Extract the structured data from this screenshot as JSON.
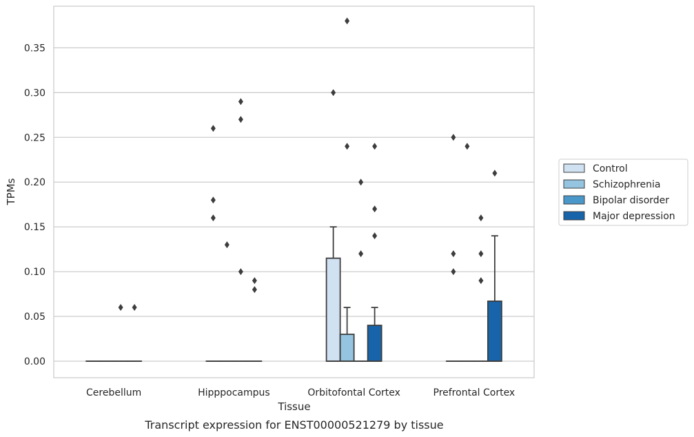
{
  "chart_data": {
    "type": "box",
    "title": "",
    "caption": "Transcript expression for ENST00000521279 by tissue",
    "xlabel": "Tissue",
    "ylabel": "TPMs",
    "ylim": [
      -0.0185,
      0.3965
    ],
    "yticks": [
      0.0,
      0.05,
      0.1,
      0.15,
      0.2,
      0.25,
      0.3,
      0.35
    ],
    "ytick_labels": [
      "0.00",
      "0.05",
      "0.10",
      "0.15",
      "0.20",
      "0.25",
      "0.30",
      "0.35"
    ],
    "grid": "y",
    "legend_position": "right",
    "categories": [
      "Cerebellum",
      "Hipppocampus",
      "Orbitofontal Cortex",
      "Prefrontal Cortex"
    ],
    "series": [
      {
        "name": "Control",
        "color": "#d0e1f2",
        "boxes": [
          {
            "q1": 0.0,
            "median": 0.0,
            "q3": 0.0,
            "whisker_low": 0.0,
            "whisker_high": 0.0,
            "outliers": []
          },
          {
            "q1": 0.0,
            "median": 0.0,
            "q3": 0.0,
            "whisker_low": 0.0,
            "whisker_high": 0.0,
            "outliers": [
              0.26,
              0.18,
              0.16
            ]
          },
          {
            "q1": 0.0,
            "median": 0.0,
            "q3": 0.115,
            "whisker_low": 0.0,
            "whisker_high": 0.15,
            "outliers": [
              0.3
            ]
          },
          {
            "q1": 0.0,
            "median": 0.0,
            "q3": 0.0,
            "whisker_low": 0.0,
            "whisker_high": 0.0,
            "outliers": [
              0.25,
              0.12,
              0.1
            ]
          }
        ]
      },
      {
        "name": "Schizophrenia",
        "color": "#94c4df",
        "boxes": [
          {
            "q1": 0.0,
            "median": 0.0,
            "q3": 0.0,
            "whisker_low": 0.0,
            "whisker_high": 0.0,
            "outliers": []
          },
          {
            "q1": 0.0,
            "median": 0.0,
            "q3": 0.0,
            "whisker_low": 0.0,
            "whisker_high": 0.0,
            "outliers": [
              0.13
            ]
          },
          {
            "q1": 0.0,
            "median": 0.0,
            "q3": 0.03,
            "whisker_low": 0.0,
            "whisker_high": 0.06,
            "outliers": [
              0.38,
              0.24
            ]
          },
          {
            "q1": 0.0,
            "median": 0.0,
            "q3": 0.0,
            "whisker_low": 0.0,
            "whisker_high": 0.0,
            "outliers": [
              0.24
            ]
          }
        ]
      },
      {
        "name": "Bipolar disorder",
        "color": "#4a98c9",
        "boxes": [
          {
            "q1": 0.0,
            "median": 0.0,
            "q3": 0.0,
            "whisker_low": 0.0,
            "whisker_high": 0.0,
            "outliers": [
              0.06
            ]
          },
          {
            "q1": 0.0,
            "median": 0.0,
            "q3": 0.0,
            "whisker_low": 0.0,
            "whisker_high": 0.0,
            "outliers": [
              0.29,
              0.27,
              0.1
            ]
          },
          {
            "q1": 0.0,
            "median": 0.0,
            "q3": 0.0,
            "whisker_low": 0.0,
            "whisker_high": 0.0,
            "outliers": [
              0.2,
              0.12
            ]
          },
          {
            "q1": 0.0,
            "median": 0.0,
            "q3": 0.0,
            "whisker_low": 0.0,
            "whisker_high": 0.0,
            "outliers": [
              0.16,
              0.12,
              0.09
            ]
          }
        ]
      },
      {
        "name": "Major depression",
        "color": "#1764ab",
        "boxes": [
          {
            "q1": 0.0,
            "median": 0.0,
            "q3": 0.0,
            "whisker_low": 0.0,
            "whisker_high": 0.0,
            "outliers": [
              0.06
            ]
          },
          {
            "q1": 0.0,
            "median": 0.0,
            "q3": 0.0,
            "whisker_low": 0.0,
            "whisker_high": 0.0,
            "outliers": [
              0.09,
              0.08
            ]
          },
          {
            "q1": 0.0,
            "median": 0.0,
            "q3": 0.04,
            "whisker_low": 0.0,
            "whisker_high": 0.06,
            "outliers": [
              0.24,
              0.17,
              0.14
            ]
          },
          {
            "q1": 0.0,
            "median": 0.0,
            "q3": 0.067,
            "whisker_low": 0.0,
            "whisker_high": 0.14,
            "outliers": [
              0.21
            ]
          }
        ]
      }
    ]
  }
}
